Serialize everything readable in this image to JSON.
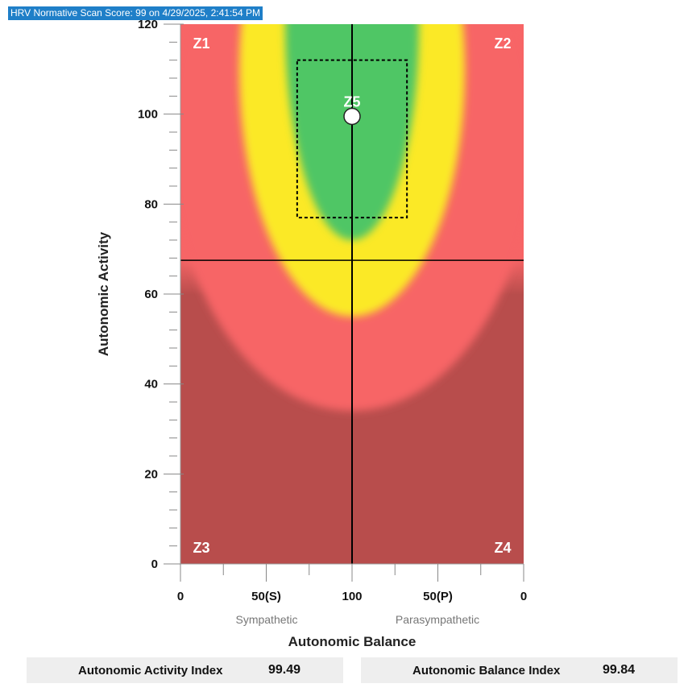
{
  "header": {
    "title": "HRV Normative Scan Score: 99 on 4/29/2025, 2:41:54 PM"
  },
  "chart_data": {
    "type": "scatter",
    "ylabel": "Autonomic Activity",
    "xlabel": "Autonomic Balance",
    "x_sublabels": {
      "left": "Sympathetic",
      "right": "Parasympathetic"
    },
    "x_ticks": [
      "0",
      "50(S)",
      "100",
      "50(P)",
      "0"
    ],
    "y_ticks": [
      "0",
      "20",
      "40",
      "60",
      "80",
      "100",
      "120"
    ],
    "ylim": [
      0,
      120
    ],
    "x_range": [
      -100,
      100
    ],
    "zones": [
      "Z1",
      "Z2",
      "Z3",
      "Z4",
      "Z5"
    ],
    "point": {
      "x": 0,
      "y": 99.5
    },
    "activity_crosshair": 67.5,
    "target_box": {
      "x_min": -32,
      "x_max": 32,
      "y_min": 77,
      "y_max": 112
    },
    "colors": {
      "green": "#50c665",
      "yellow": "#fbe925",
      "red": "#f76566",
      "dark_red": "#b84d4c"
    }
  },
  "footer": {
    "activity_label": "Autonomic Activity Index",
    "activity_value": "99.49",
    "balance_label": "Autonomic Balance Index",
    "balance_value": "99.84"
  }
}
